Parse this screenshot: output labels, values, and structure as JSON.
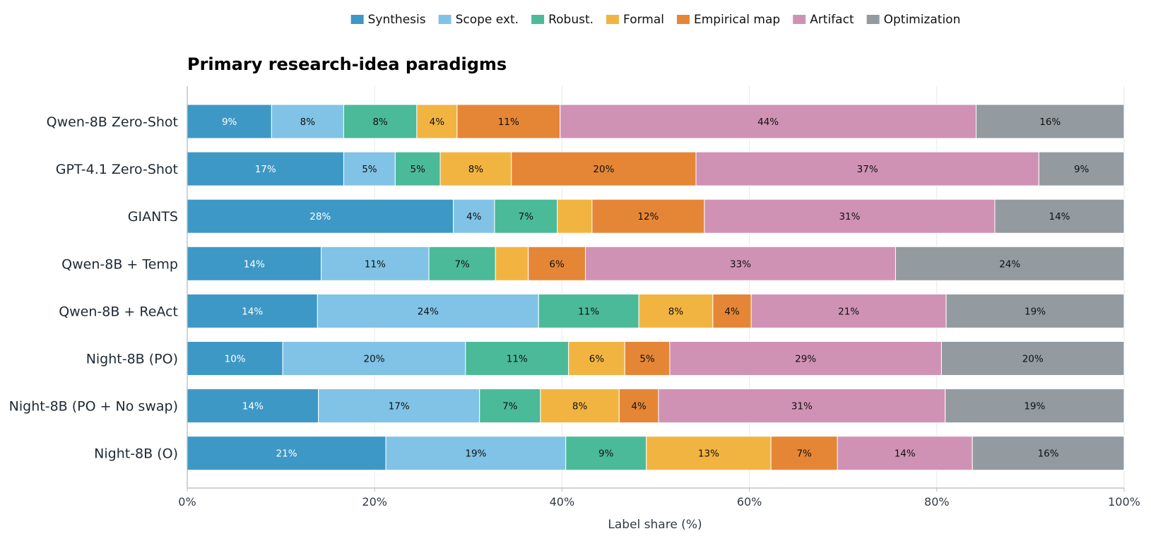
{
  "chart_data": {
    "type": "bar",
    "orientation": "horizontal",
    "stacked": true,
    "title": "Primary research-idea paradigms",
    "xlabel": "Label share (%)",
    "ylabel": "",
    "xlim": [
      0,
      100
    ],
    "xticks": [
      "0%",
      "20%",
      "40%",
      "60%",
      "80%",
      "100%"
    ],
    "xtick_values": [
      0,
      20,
      40,
      60,
      80,
      100
    ],
    "grid": true,
    "legend_position": "top-center",
    "categories": [
      "Qwen-8B Zero-Shot",
      "GPT-4.1 Zero-Shot",
      "GIANTS",
      "Qwen-8B + Temp",
      "Qwen-8B + ReAct",
      "Night-8B (PO)",
      "Night-8B (PO + No swap)",
      "Night-8B (O)"
    ],
    "series": [
      {
        "name": "Synthesis",
        "color": "#3e98c6",
        "label_color": "#ffffff",
        "values": [
          9.0,
          16.7,
          28.4,
          14.3,
          13.9,
          10.2,
          14.0,
          21.2
        ],
        "labels": [
          "9%",
          "17%",
          "28%",
          "14%",
          "14%",
          "10%",
          "14%",
          "21%"
        ]
      },
      {
        "name": "Scope ext.",
        "color": "#80c3e6",
        "label_color": "#111111",
        "values": [
          7.7,
          5.5,
          4.4,
          11.5,
          23.6,
          19.5,
          17.2,
          19.2
        ],
        "labels": [
          "8%",
          "5%",
          "4%",
          "11%",
          "24%",
          "20%",
          "17%",
          "19%"
        ]
      },
      {
        "name": "Robust.",
        "color": "#4bba98",
        "label_color": "#111111",
        "values": [
          7.8,
          4.8,
          6.7,
          7.1,
          10.7,
          11.0,
          6.5,
          8.6
        ],
        "labels": [
          "8%",
          "5%",
          "7%",
          "7%",
          "11%",
          "11%",
          "7%",
          "9%"
        ]
      },
      {
        "name": "Formal",
        "color": "#f2b441",
        "label_color": "#111111",
        "values": [
          4.3,
          7.6,
          3.7,
          3.5,
          7.9,
          6.0,
          8.4,
          13.3
        ],
        "labels": [
          "4%",
          "8%",
          "",
          "",
          "8%",
          "6%",
          "8%",
          "13%"
        ]
      },
      {
        "name": "Empirical map",
        "color": "#e58636",
        "label_color": "#111111",
        "values": [
          11.0,
          19.7,
          12.0,
          6.1,
          4.1,
          4.8,
          4.2,
          7.1
        ],
        "labels": [
          "11%",
          "20%",
          "12%",
          "6%",
          "4%",
          "5%",
          "4%",
          "7%"
        ]
      },
      {
        "name": "Artifact",
        "color": "#d092b4",
        "label_color": "#111111",
        "values": [
          44.4,
          36.6,
          31.0,
          33.1,
          20.8,
          29.0,
          30.6,
          14.4
        ],
        "labels": [
          "44%",
          "37%",
          "31%",
          "33%",
          "21%",
          "29%",
          "31%",
          "14%"
        ]
      },
      {
        "name": "Optimization",
        "color": "#939aa0",
        "label_color": "#111111",
        "values": [
          15.8,
          9.1,
          13.8,
          24.4,
          19.0,
          19.5,
          19.1,
          16.2
        ],
        "labels": [
          "16%",
          "9%",
          "14%",
          "24%",
          "19%",
          "20%",
          "19%",
          "16%"
        ]
      }
    ]
  }
}
